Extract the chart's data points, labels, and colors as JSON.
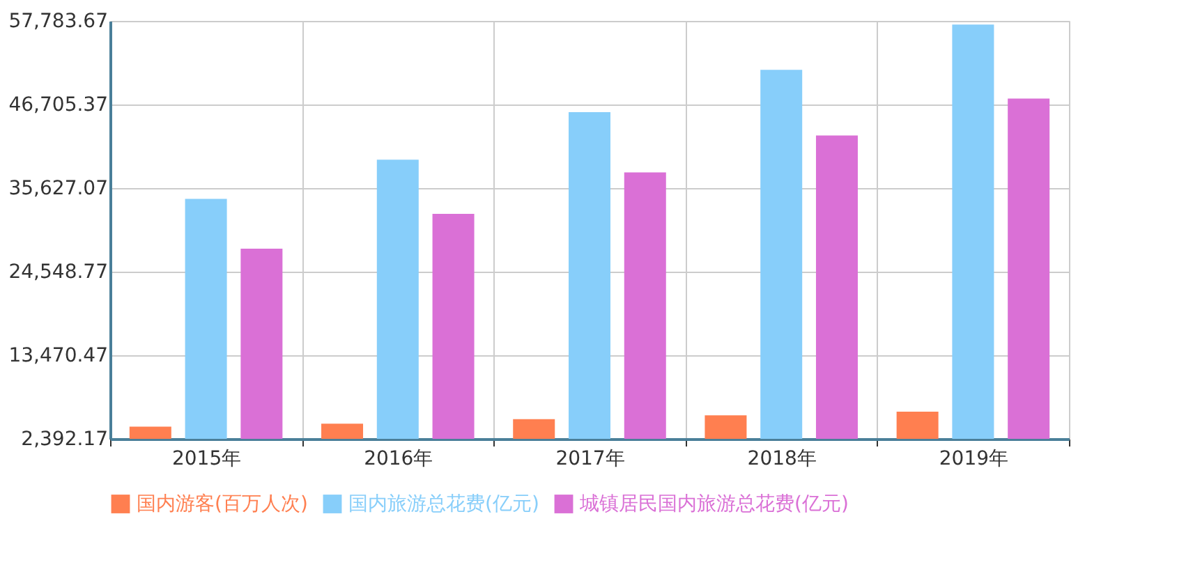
{
  "chart_data": {
    "type": "bar",
    "categories": [
      "2015年",
      "2016年",
      "2017年",
      "2018年",
      "2019年"
    ],
    "series": [
      {
        "name": "国内游客(百万人次)",
        "color": "#ff7f50",
        "values": [
          4000,
          4400,
          5000,
          5500,
          6000
        ]
      },
      {
        "name": "国内旅游总花费(亿元)",
        "color": "#87cefa",
        "values": [
          34200,
          39400,
          45700,
          51300,
          57300
        ]
      },
      {
        "name": "城镇居民国内旅游总花费(亿元)",
        "color": "#da70d6",
        "values": [
          27600,
          32200,
          37700,
          42600,
          47500
        ]
      }
    ],
    "ylim": [
      2392.17,
      57783.67
    ],
    "yticks": [
      {
        "value": 2392.17,
        "label": "2,392.17"
      },
      {
        "value": 13470.47,
        "label": "13,470.47"
      },
      {
        "value": 24548.77,
        "label": "24,548.77"
      },
      {
        "value": 35627.07,
        "label": "35,627.07"
      },
      {
        "value": 46705.37,
        "label": "46,705.37"
      },
      {
        "value": 57783.67,
        "label": "57,783.67"
      }
    ],
    "grid": true,
    "legend": "bottom"
  }
}
